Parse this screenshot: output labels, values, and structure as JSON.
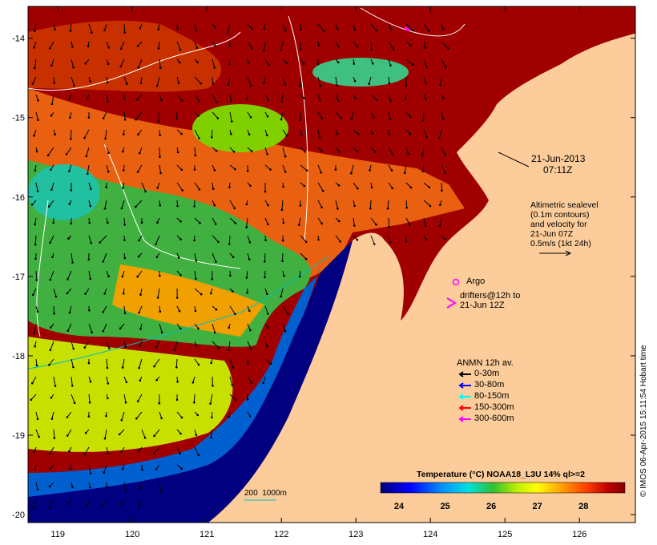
{
  "map": {
    "x_ticks": [
      {
        "value": 119,
        "label": "119"
      },
      {
        "value": 120,
        "label": "120"
      },
      {
        "value": 121,
        "label": "121"
      },
      {
        "value": 122,
        "label": "122"
      },
      {
        "value": 123,
        "label": "123"
      },
      {
        "value": 124,
        "label": "124"
      },
      {
        "value": 125,
        "label": "125"
      },
      {
        "value": 126,
        "label": "126"
      }
    ],
    "y_ticks": [
      {
        "value": -14,
        "label": "-14"
      },
      {
        "value": -15,
        "label": "-15"
      },
      {
        "value": -16,
        "label": "-16"
      },
      {
        "value": -17,
        "label": "-17"
      },
      {
        "value": -18,
        "label": "-18"
      },
      {
        "value": -19,
        "label": "-19"
      },
      {
        "value": -20,
        "label": "-20"
      }
    ],
    "lon_range": [
      118.6,
      126.75
    ],
    "lat_range": [
      -20.1,
      -13.6
    ]
  },
  "annotations": {
    "date": "21-Jun-2013",
    "time": "07:11Z",
    "altimetry_lines": [
      "Altimetric sealevel",
      "(0.1m contours)",
      "and velocity for",
      "21-Jun 07Z",
      "0.5m/s (1kt 24h)"
    ],
    "argo_label": "Argo",
    "drifters_lines": [
      "drifters@12h to",
      "21-Jun 12Z"
    ],
    "depth_label": "200  1000m"
  },
  "legend": {
    "title": "ANMN 12h av.",
    "items": [
      {
        "label": "0-30m",
        "color": "#000000"
      },
      {
        "label": "30-80m",
        "color": "#0000ff"
      },
      {
        "label": "80-150m",
        "color": "#00ffff"
      },
      {
        "label": "150-300m",
        "color": "#ff0000"
      },
      {
        "label": "300-600m",
        "color": "#ff00ff"
      }
    ]
  },
  "colorbar": {
    "title": "Temperature (°C) NOAA18_L3U 14% ql>=2",
    "ticks": [
      "24",
      "25",
      "26",
      "27",
      "28"
    ],
    "range": [
      23.6,
      28.9
    ]
  },
  "colors": {
    "land": "#fccc9a",
    "argo": "#ff00ff",
    "contour": "#ffffff",
    "depth200": "#00c0c0"
  },
  "stamp": "© IMOS 06-Apr-2015 15:11:54 Hobart time"
}
